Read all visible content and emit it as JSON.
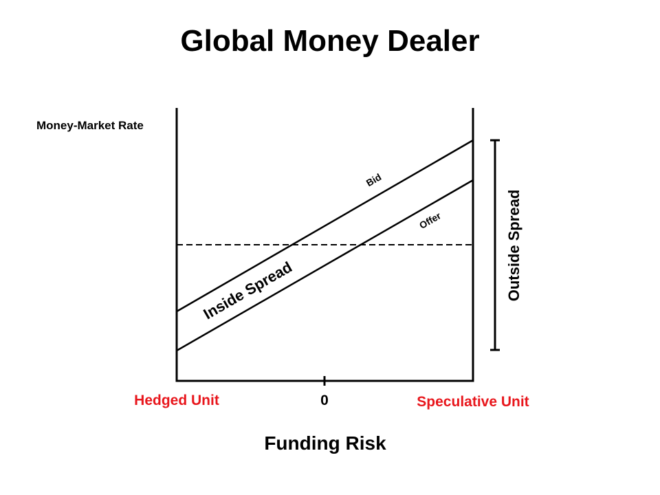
{
  "title": "Global Money Dealer",
  "labels": {
    "y_axis": "Money-Market Rate",
    "x_axis": "Funding Risk",
    "left_unit": "Hedged Unit",
    "right_unit": "Speculative Unit",
    "zero_tick": "0",
    "bid_line": "Bid",
    "offer_line": "Offer",
    "inside_spread": "Inside Spread",
    "outside_spread": "Outside Spread"
  },
  "colors": {
    "text": "#000000",
    "unit_label": "#e8161c",
    "background": "#ffffff"
  }
}
